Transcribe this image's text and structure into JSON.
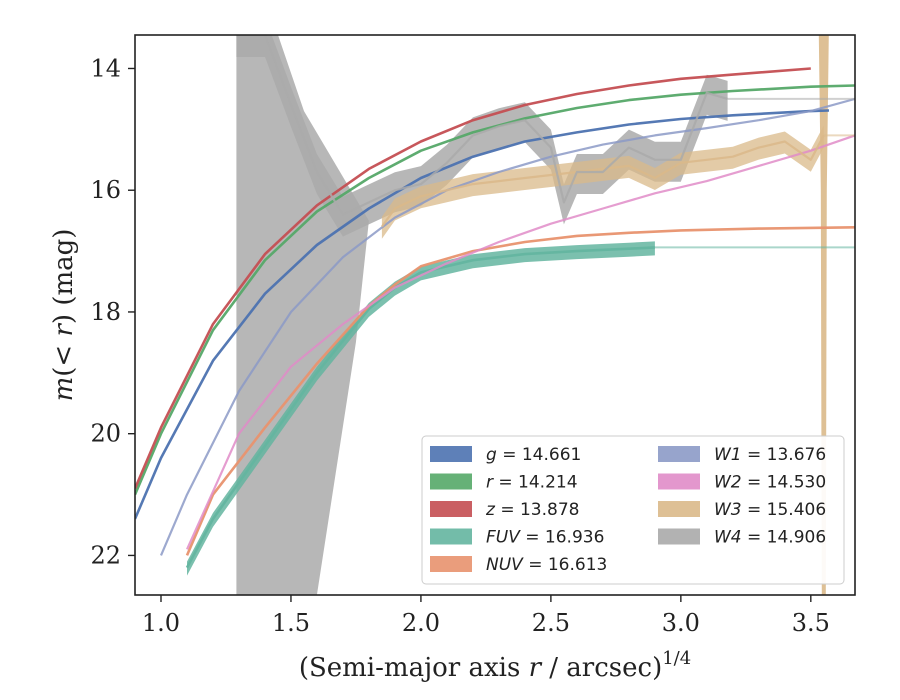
{
  "chart_data": {
    "type": "line",
    "xlabel": "(Semi-major axis r / arcsec)^{1/4}",
    "xlabel_parts": [
      "(Semi-major axis ",
      "r",
      " / arcsec)",
      "1/4"
    ],
    "ylabel": "m(< r) (mag)",
    "ylabel_parts": [
      "m",
      "(< ",
      "r",
      ") (mag)"
    ],
    "xlim": [
      0.9,
      3.67
    ],
    "ylim": [
      22.65,
      13.45
    ],
    "y_inverted": true,
    "xticks": [
      "1.0",
      "1.5",
      "2.0",
      "2.5",
      "3.0",
      "3.5"
    ],
    "yticks": [
      "14",
      "16",
      "18",
      "20",
      "22"
    ],
    "legend_position": "lower-right",
    "series": [
      {
        "name": "g = 14.661",
        "label_var": "g",
        "label_val": "= 14.661",
        "color": "#4c72b0",
        "x": [
          0.9,
          1.0,
          1.2,
          1.4,
          1.6,
          1.8,
          2.0,
          2.2,
          2.4,
          2.6,
          2.8,
          3.0,
          3.2,
          3.5,
          3.57
        ],
        "y": [
          21.4,
          20.4,
          18.8,
          17.7,
          16.9,
          16.3,
          15.8,
          15.45,
          15.2,
          15.05,
          14.92,
          14.83,
          14.77,
          14.7,
          14.69
        ]
      },
      {
        "name": "r = 14.214",
        "label_var": "r",
        "label_val": "= 14.214",
        "color": "#55a868",
        "x": [
          0.9,
          1.0,
          1.2,
          1.4,
          1.6,
          1.8,
          2.0,
          2.2,
          2.4,
          2.6,
          2.8,
          3.0,
          3.2,
          3.5,
          3.67
        ],
        "y": [
          21.0,
          20.0,
          18.3,
          17.15,
          16.35,
          15.8,
          15.35,
          15.05,
          14.82,
          14.65,
          14.52,
          14.43,
          14.37,
          14.3,
          14.28
        ]
      },
      {
        "name": "z = 13.878",
        "label_var": "z",
        "label_val": "= 13.878",
        "color": "#c44e52",
        "x": [
          0.9,
          1.0,
          1.2,
          1.4,
          1.6,
          1.8,
          2.0,
          2.2,
          2.4,
          2.6,
          2.8,
          3.0,
          3.2,
          3.5
        ],
        "y": [
          20.9,
          19.9,
          18.2,
          17.05,
          16.25,
          15.65,
          15.2,
          14.85,
          14.6,
          14.42,
          14.28,
          14.17,
          14.1,
          14.0
        ]
      },
      {
        "name": "FUV = 16.936",
        "label_var": "FUV",
        "label_val": "= 16.936",
        "color": "#64b5a0",
        "x": [
          1.1,
          1.2,
          1.4,
          1.6,
          1.8,
          1.9,
          2.0,
          2.2,
          2.4,
          2.6,
          2.8,
          2.9
        ],
        "y": [
          22.2,
          21.4,
          20.2,
          19.0,
          17.95,
          17.6,
          17.35,
          17.15,
          17.05,
          17.0,
          16.96,
          16.94
        ]
      },
      {
        "name": "NUV = 16.613",
        "label_var": "NUV",
        "label_val": "= 16.613",
        "color": "#e8926e",
        "x": [
          1.1,
          1.2,
          1.4,
          1.6,
          1.8,
          1.9,
          2.0,
          2.2,
          2.4,
          2.6,
          2.8,
          3.0,
          3.3,
          3.67
        ],
        "y": [
          22.0,
          21.0,
          19.9,
          18.85,
          17.9,
          17.55,
          17.25,
          17.0,
          16.85,
          16.75,
          16.7,
          16.66,
          16.63,
          16.61
        ]
      },
      {
        "name": "W1 = 13.676",
        "label_var": "W1",
        "label_val": "= 13.676",
        "color": "#8c9ac7",
        "x": [
          1.0,
          1.1,
          1.3,
          1.5,
          1.7,
          1.9,
          2.1,
          2.3,
          2.5,
          2.7,
          2.9,
          3.1,
          3.3,
          3.5,
          3.67
        ],
        "y": [
          22.0,
          21.0,
          19.3,
          18.0,
          17.1,
          16.45,
          16.0,
          15.7,
          15.45,
          15.25,
          15.1,
          14.98,
          14.85,
          14.7,
          14.5
        ]
      },
      {
        "name": "W2 = 14.530",
        "label_var": "W2",
        "label_val": "= 14.530",
        "color": "#e08cc8",
        "x": [
          1.1,
          1.3,
          1.5,
          1.7,
          1.9,
          2.1,
          2.3,
          2.5,
          2.7,
          2.9,
          3.1,
          3.3,
          3.5,
          3.67
        ],
        "y": [
          21.9,
          20.0,
          18.9,
          18.2,
          17.6,
          17.2,
          16.85,
          16.55,
          16.3,
          16.05,
          15.85,
          15.6,
          15.35,
          15.1
        ]
      },
      {
        "name": "W3 = 15.406",
        "label_var": "W3",
        "label_val": "= 15.406",
        "color": "#dab98a",
        "x": [
          1.85,
          1.9,
          2.0,
          2.1,
          2.2,
          2.3,
          2.4,
          2.5,
          2.6,
          2.7,
          2.8,
          2.9,
          3.0,
          3.1,
          3.2,
          3.3,
          3.4,
          3.5,
          3.55
        ],
        "y": [
          16.6,
          16.3,
          16.1,
          16.0,
          15.9,
          15.85,
          15.8,
          15.75,
          15.7,
          15.65,
          15.6,
          15.8,
          15.55,
          15.5,
          15.45,
          15.3,
          15.2,
          15.5,
          15.1
        ]
      },
      {
        "name": "W4 = 14.906",
        "label_var": "W4",
        "label_val": "= 14.906",
        "color": "#aaaaaa",
        "x": [
          1.29,
          1.4,
          1.5,
          1.6,
          1.7,
          1.8,
          1.9,
          2.0,
          2.1,
          2.2,
          2.3,
          2.4,
          2.5,
          2.55,
          2.6,
          2.7,
          2.8,
          2.9,
          3.0,
          3.1,
          3.18
        ],
        "y": [
          13.45,
          13.45,
          14.6,
          15.7,
          16.4,
          16.2,
          16.0,
          15.9,
          15.55,
          15.1,
          14.95,
          14.85,
          15.3,
          16.2,
          15.7,
          15.7,
          15.3,
          15.5,
          15.5,
          14.4,
          14.5
        ]
      }
    ]
  }
}
